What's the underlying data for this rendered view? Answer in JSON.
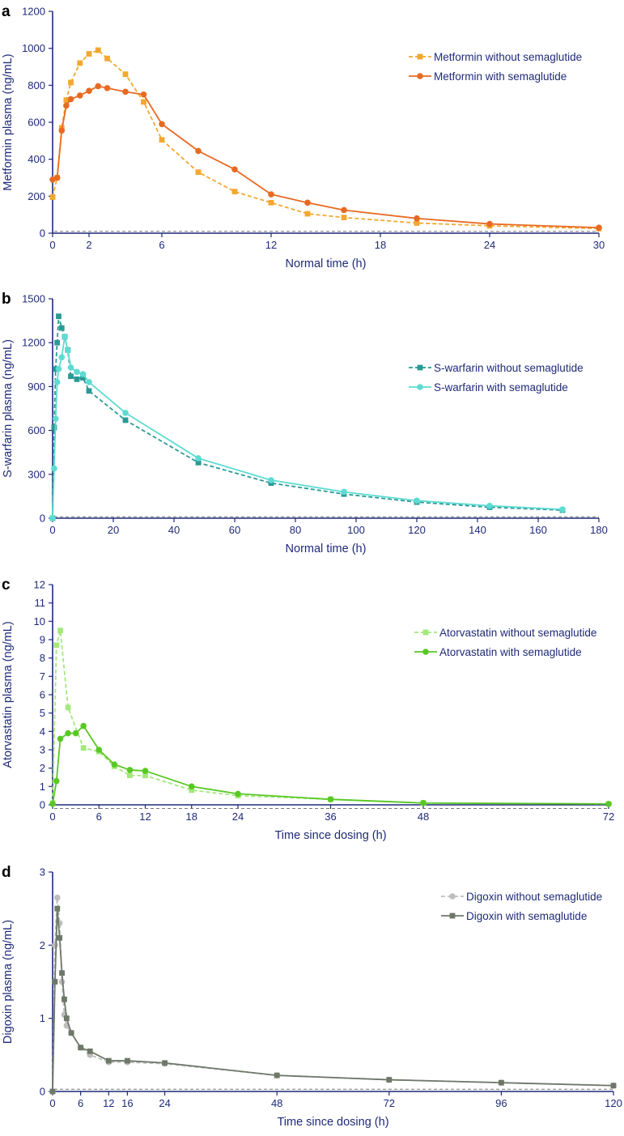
{
  "chart_data": [
    {
      "id": "a",
      "panel_label": "a",
      "type": "line",
      "xlabel": "Normal time (h)",
      "ylabel": "Metformin plasma (ng/mL)",
      "xlim": [
        0,
        30
      ],
      "ylim": [
        0,
        1200
      ],
      "xticks": [
        0,
        2,
        6,
        12,
        18,
        24,
        30
      ],
      "yticks": [
        0,
        200,
        400,
        600,
        800,
        1000,
        1200
      ],
      "loq": 10,
      "legend_position": "top-right",
      "series": [
        {
          "name": "Metformin without semaglutide",
          "color": "#f2a830",
          "dashed": true,
          "marker": "square",
          "x": [
            0,
            0.25,
            0.5,
            0.75,
            1,
            1.5,
            2,
            2.5,
            3,
            4,
            5,
            6,
            8,
            10,
            12,
            14,
            16,
            20,
            24,
            30
          ],
          "y": [
            195,
            300,
            570,
            720,
            815,
            920,
            970,
            990,
            945,
            860,
            710,
            505,
            330,
            225,
            165,
            105,
            85,
            55,
            40,
            25
          ]
        },
        {
          "name": "Metformin with semaglutide",
          "color": "#e86a22",
          "dashed": false,
          "marker": "circle",
          "x": [
            0,
            0.25,
            0.5,
            0.75,
            1,
            1.5,
            2,
            2.5,
            3,
            4,
            5,
            6,
            8,
            10,
            12,
            14,
            16,
            20,
            24,
            30
          ],
          "y": [
            290,
            300,
            555,
            690,
            725,
            745,
            770,
            795,
            785,
            765,
            750,
            590,
            445,
            345,
            210,
            165,
            125,
            80,
            50,
            30
          ]
        }
      ]
    },
    {
      "id": "b",
      "panel_label": "b",
      "type": "line",
      "xlabel": "Normal time (h)",
      "ylabel": "S-warfarin plasma (ng/mL)",
      "xlim": [
        0,
        180
      ],
      "ylim": [
        0,
        1500
      ],
      "xticks": [
        0,
        20,
        40,
        60,
        80,
        100,
        120,
        140,
        160,
        180
      ],
      "yticks": [
        0,
        300,
        600,
        900,
        1200,
        1500
      ],
      "loq": 10,
      "legend_position": "top-right",
      "series": [
        {
          "name": "S-warfarin without semaglutide",
          "color": "#2a9a96",
          "dashed": true,
          "marker": "square",
          "x": [
            0,
            0.5,
            1,
            1.5,
            2,
            3,
            4,
            5,
            6,
            8,
            10,
            12,
            24,
            48,
            72,
            96,
            120,
            144,
            168
          ],
          "y": [
            0,
            620,
            1020,
            1200,
            1380,
            1300,
            1240,
            1150,
            970,
            950,
            960,
            870,
            670,
            380,
            240,
            165,
            110,
            75,
            55
          ]
        },
        {
          "name": "S-warfarin with semaglutide",
          "color": "#5edbd2",
          "dashed": false,
          "marker": "circle",
          "x": [
            0,
            0.5,
            1,
            1.5,
            2,
            3,
            4,
            5,
            6,
            8,
            10,
            12,
            24,
            48,
            72,
            96,
            120,
            144,
            168
          ],
          "y": [
            0,
            340,
            680,
            930,
            1020,
            1100,
            1240,
            1150,
            1030,
            1000,
            985,
            930,
            720,
            410,
            260,
            180,
            120,
            85,
            60
          ]
        }
      ]
    },
    {
      "id": "c",
      "panel_label": "c",
      "type": "line",
      "xlabel": "Time since dosing (h)",
      "ylabel": "Atorvastatin plasma (ng/mL)",
      "xlim": [
        0,
        72
      ],
      "ylim": [
        0,
        12
      ],
      "xticks": [
        0,
        6,
        12,
        18,
        24,
        36,
        48,
        72
      ],
      "yticks": [
        0,
        1,
        2,
        3,
        4,
        5,
        6,
        7,
        8,
        9,
        10,
        11,
        12
      ],
      "loq": -0.2,
      "legend_position": "top-right",
      "series": [
        {
          "name": "Atorvastatin without semaglutide",
          "color": "#a4e87c",
          "dashed": true,
          "marker": "square",
          "x": [
            0,
            0.5,
            1,
            2,
            4,
            6,
            8,
            10,
            12,
            18,
            24,
            36,
            48,
            72
          ],
          "y": [
            0.1,
            8.7,
            9.5,
            5.3,
            3.1,
            2.9,
            2.1,
            1.6,
            1.6,
            0.8,
            0.5,
            0.3,
            0.1,
            0.05
          ]
        },
        {
          "name": "Atorvastatin with semaglutide",
          "color": "#58c825",
          "dashed": false,
          "marker": "circle",
          "x": [
            0,
            0.5,
            1,
            2,
            3,
            4,
            6,
            8,
            10,
            12,
            18,
            24,
            36,
            48,
            72
          ],
          "y": [
            0.05,
            1.3,
            3.6,
            3.9,
            3.9,
            4.3,
            3.0,
            2.2,
            1.9,
            1.85,
            1.0,
            0.6,
            0.3,
            0.1,
            0.05
          ]
        }
      ]
    },
    {
      "id": "d",
      "panel_label": "d",
      "type": "line",
      "xlabel": "Time since dosing (h)",
      "ylabel": "Digoxin plasma (ng/mL)",
      "xlim": [
        0,
        120
      ],
      "ylim": [
        0,
        3
      ],
      "xticks": [
        0,
        6,
        12,
        16,
        24,
        48,
        72,
        96,
        120
      ],
      "yticks": [
        0,
        1,
        2,
        3
      ],
      "loq": 0.03,
      "legend_position": "top-right",
      "series": [
        {
          "name": "Digoxin without semaglutide",
          "color": "#bdbdbd",
          "dashed": true,
          "marker": "circle",
          "x": [
            0,
            0.5,
            1,
            1.5,
            2,
            2.5,
            3,
            4,
            6,
            8,
            12,
            16,
            24,
            48,
            72,
            96,
            120
          ],
          "y": [
            0,
            2.0,
            2.65,
            2.3,
            1.5,
            1.05,
            0.9,
            0.8,
            0.6,
            0.5,
            0.4,
            0.4,
            0.38,
            0.22,
            0.16,
            0.12,
            0.08
          ]
        },
        {
          "name": "Digoxin with semaglutide",
          "color": "#6e7868",
          "dashed": false,
          "marker": "square",
          "x": [
            0,
            0.5,
            1,
            1.5,
            2,
            2.5,
            3,
            4,
            6,
            8,
            12,
            16,
            24,
            48,
            72,
            96,
            120
          ],
          "y": [
            0,
            1.5,
            2.5,
            2.1,
            1.62,
            1.26,
            1.0,
            0.8,
            0.6,
            0.55,
            0.42,
            0.42,
            0.39,
            0.22,
            0.16,
            0.12,
            0.08
          ]
        }
      ]
    }
  ]
}
